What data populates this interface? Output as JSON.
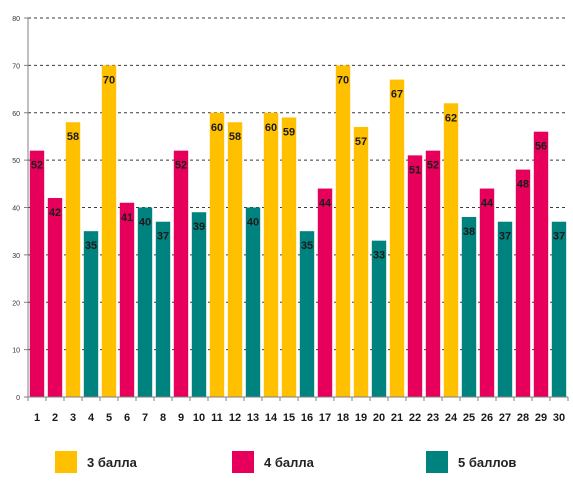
{
  "chart_data": {
    "type": "bar",
    "title": "",
    "xlabel": "",
    "ylabel": "",
    "ylim": [
      0,
      80
    ],
    "y_ticks": [
      "0",
      "10",
      "20",
      "30",
      "40",
      "50",
      "60",
      "70",
      "80"
    ],
    "grid": "horizontal dashed",
    "categories": [
      "1",
      "2",
      "3",
      "4",
      "5",
      "6",
      "7",
      "8",
      "9",
      "10",
      "11",
      "12",
      "13",
      "14",
      "15",
      "16",
      "17",
      "18",
      "19",
      "20",
      "21",
      "22",
      "23",
      "24",
      "25",
      "26",
      "27",
      "28",
      "29",
      "30"
    ],
    "values": [
      52,
      42,
      58,
      35,
      70,
      41,
      40,
      37,
      52,
      39,
      60,
      58,
      40,
      60,
      59,
      35,
      44,
      70,
      57,
      33,
      67,
      51,
      52,
      62,
      38,
      44,
      37,
      48,
      56,
      37
    ],
    "series_index": [
      1,
      1,
      0,
      2,
      0,
      1,
      2,
      2,
      1,
      2,
      0,
      0,
      2,
      0,
      0,
      2,
      1,
      0,
      0,
      2,
      0,
      1,
      1,
      0,
      2,
      1,
      2,
      1,
      1,
      2
    ],
    "data_labels": [
      "52",
      "42",
      "58",
      "35",
      "70",
      "41",
      "40",
      "37",
      "52",
      "39",
      "60",
      "58",
      "40",
      "60",
      "59",
      "35",
      "44",
      "70",
      "57",
      "33",
      "67",
      "51",
      "52",
      "62",
      "38",
      "44",
      "37",
      "48",
      "56",
      "37"
    ],
    "series": [
      {
        "name": "3 балла",
        "color": "#FFC000"
      },
      {
        "name": "4 балла",
        "color": "#E6005C"
      },
      {
        "name": "5 баллов",
        "color": "#00827F"
      }
    ],
    "legend_position": "bottom"
  }
}
